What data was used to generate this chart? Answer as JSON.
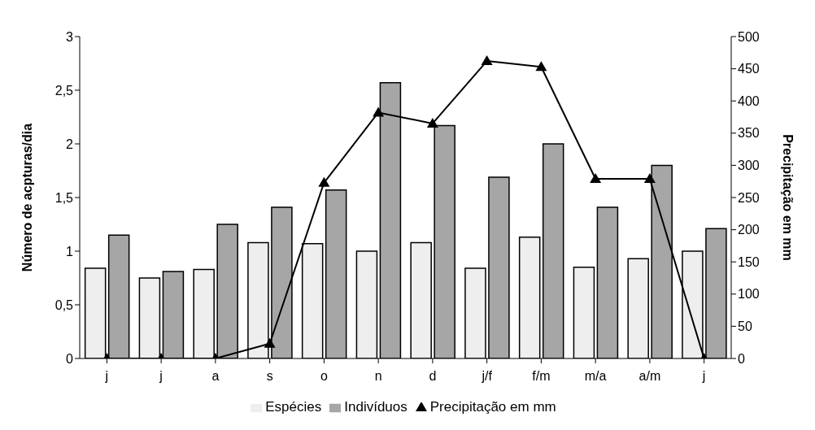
{
  "chart_data": {
    "type": "bar",
    "ylabel": "Número de acpturas/dia",
    "y2label": "Precipitação em mm",
    "categories": [
      "j",
      "j",
      "a",
      "s",
      "o",
      "n",
      "d",
      "j/f",
      "f/m",
      "m/a",
      "a/m",
      "j"
    ],
    "series": [
      {
        "name": "Espécies",
        "color": "#eeeeee",
        "values": [
          0.84,
          0.75,
          0.83,
          1.08,
          1.07,
          1.0,
          1.08,
          0.84,
          1.13,
          0.85,
          0.93,
          1.0
        ]
      },
      {
        "name": "Indivíduos",
        "color": "#a6a6a6",
        "values": [
          1.15,
          0.81,
          1.25,
          1.41,
          1.57,
          2.57,
          2.17,
          1.69,
          2.0,
          1.41,
          1.8,
          1.21
        ]
      },
      {
        "name": "Precipitação em mm",
        "type": "line",
        "axis": "y2",
        "color": "#000000",
        "marker": "triangle",
        "values": [
          0,
          0,
          0,
          23,
          273,
          382,
          365,
          462,
          453,
          279,
          279,
          0
        ]
      }
    ],
    "ylim": [
      0,
      3
    ],
    "yticks": [
      0,
      {
        "value": 0.5,
        "label": "0,5"
      },
      1,
      {
        "value": 1.5,
        "label": "1,5"
      },
      2,
      {
        "value": 2.5,
        "label": "2,5"
      },
      3
    ],
    "y2lim": [
      0,
      500
    ],
    "y2ticks": [
      0,
      50,
      100,
      150,
      200,
      250,
      300,
      350,
      400,
      450,
      500
    ],
    "legend": "bottom"
  }
}
